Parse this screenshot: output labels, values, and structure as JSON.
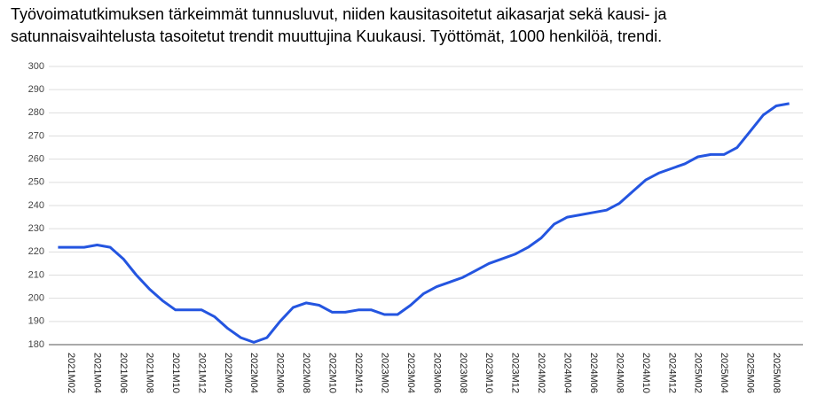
{
  "chart_data": {
    "type": "line",
    "title": [
      "Työvoimatutkimuksen tärkeimmät tunnusluvut, niiden kausitasoitetut aikasarjat sekä kausi- ja",
      "satunnaisvaihtelusta tasoitetut trendit muuttujina Kuukausi. Työttömät, 1000 henkilöä, trendi."
    ],
    "categories": [
      null,
      "2021M02",
      null,
      "2021M04",
      null,
      "2021M06",
      null,
      "2021M08",
      null,
      "2021M10",
      null,
      "2021M12",
      null,
      "2022M02",
      null,
      "2022M04",
      null,
      "2022M06",
      null,
      "2022M08",
      null,
      "2022M10",
      null,
      "2022M12",
      null,
      "2023M02",
      null,
      "2023M04",
      null,
      "2023M06",
      null,
      "2023M08",
      null,
      "2023M10",
      null,
      "2023M12",
      null,
      "2024M02",
      null,
      "2024M04",
      null,
      "2024M06",
      null,
      "2024M08",
      null,
      "2024M10",
      null,
      "2024M12",
      null,
      "2025M02",
      null,
      "2025M04",
      null,
      "2025M06",
      null,
      "2025M08",
      null
    ],
    "series": [
      {
        "color": "#2455e0",
        "values": [
          222,
          222,
          222,
          223,
          222,
          217,
          210,
          204,
          199,
          195,
          195,
          195,
          192,
          187,
          183,
          181,
          183,
          190,
          196,
          198,
          197,
          194,
          194,
          195,
          195,
          193,
          193,
          197,
          202,
          205,
          207,
          209,
          212,
          215,
          217,
          219,
          222,
          226,
          232,
          235,
          236,
          237,
          238,
          241,
          246,
          251,
          254,
          256,
          258,
          261,
          262,
          262,
          265,
          272,
          279,
          283,
          284
        ]
      }
    ],
    "ylim": [
      180,
      300
    ],
    "yticks": [
      180,
      190,
      200,
      210,
      220,
      230,
      240,
      250,
      260,
      270,
      280,
      290,
      300
    ],
    "grid": true
  }
}
